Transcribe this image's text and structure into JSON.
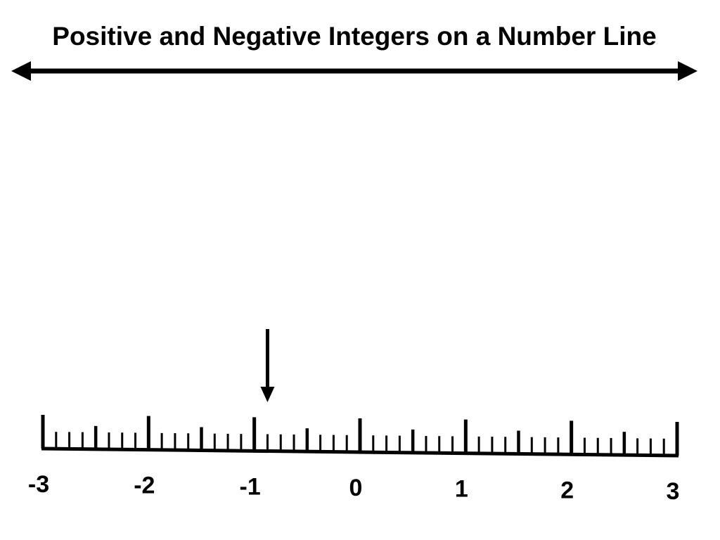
{
  "title": "Positive and Negative Integers on a Number Line",
  "colors": {
    "ink": "#000000",
    "background": "#ffffff"
  },
  "number_line": {
    "min": -3,
    "max": 3,
    "labels": [
      "-3",
      "-2",
      "-1",
      "0",
      "1",
      "2",
      "3"
    ],
    "major_step": 1,
    "half_step": 0.5,
    "minor_step": 0.125,
    "pointer_value": -0.875
  }
}
